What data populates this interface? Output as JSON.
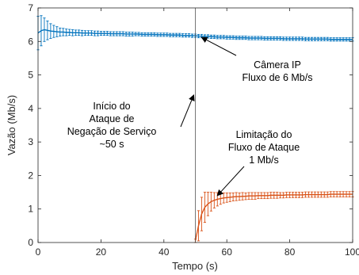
{
  "chart_data": {
    "type": "line",
    "title": "",
    "xlabel": "Tempo (s)",
    "ylabel": "Vazão (Mb/s)",
    "xlim": [
      0,
      100
    ],
    "ylim": [
      0,
      7
    ],
    "x_ticks": [
      "0",
      "20",
      "40",
      "60",
      "80",
      "100"
    ],
    "y_ticks": [
      "0",
      "1",
      "2",
      "3",
      "4",
      "5",
      "6",
      "7"
    ],
    "grid": false,
    "attack_start_x": 50,
    "series": [
      {
        "color": "#0072BD",
        "x": [
          0,
          1,
          2,
          3,
          4,
          5,
          6,
          7,
          8,
          9,
          10,
          11,
          12,
          13,
          14,
          15,
          16,
          17,
          18,
          19,
          20,
          21,
          22,
          23,
          24,
          25,
          26,
          27,
          28,
          29,
          30,
          31,
          32,
          33,
          34,
          35,
          36,
          37,
          38,
          39,
          40,
          41,
          42,
          43,
          44,
          45,
          46,
          47,
          48,
          49,
          50,
          51,
          52,
          53,
          54,
          55,
          56,
          57,
          58,
          59,
          60,
          61,
          62,
          63,
          64,
          65,
          66,
          67,
          68,
          69,
          70,
          71,
          72,
          73,
          74,
          75,
          76,
          77,
          78,
          79,
          80,
          81,
          82,
          83,
          84,
          85,
          86,
          87,
          88,
          89,
          90,
          91,
          92,
          93,
          94,
          95,
          96,
          97,
          98,
          99,
          100
        ],
        "y": [
          6.25,
          6.32,
          6.35,
          6.33,
          6.31,
          6.3,
          6.29,
          6.28,
          6.28,
          6.27,
          6.27,
          6.26,
          6.26,
          6.26,
          6.25,
          6.25,
          6.25,
          6.25,
          6.24,
          6.24,
          6.24,
          6.24,
          6.24,
          6.23,
          6.23,
          6.23,
          6.23,
          6.23,
          6.22,
          6.22,
          6.22,
          6.22,
          6.22,
          6.21,
          6.21,
          6.21,
          6.21,
          6.21,
          6.2,
          6.2,
          6.2,
          6.2,
          6.19,
          6.19,
          6.19,
          6.19,
          6.18,
          6.18,
          6.18,
          6.17,
          6.17,
          6.16,
          6.16,
          6.15,
          6.15,
          6.14,
          6.14,
          6.13,
          6.13,
          6.13,
          6.12,
          6.12,
          6.12,
          6.11,
          6.11,
          6.11,
          6.11,
          6.1,
          6.1,
          6.1,
          6.1,
          6.1,
          6.09,
          6.09,
          6.09,
          6.09,
          6.09,
          6.09,
          6.08,
          6.08,
          6.08,
          6.08,
          6.08,
          6.08,
          6.08,
          6.07,
          6.07,
          6.07,
          6.07,
          6.07,
          6.07,
          6.07,
          6.07,
          6.06,
          6.06,
          6.06,
          6.06,
          6.06,
          6.06,
          6.06,
          6.06
        ],
        "err": [
          0.5,
          0.45,
          0.35,
          0.28,
          0.22,
          0.18,
          0.15,
          0.12,
          0.11,
          0.1,
          0.09,
          0.09,
          0.08,
          0.08,
          0.08,
          0.07,
          0.07,
          0.07,
          0.07,
          0.07,
          0.06,
          0.06,
          0.06,
          0.06,
          0.06,
          0.06,
          0.06,
          0.06,
          0.06,
          0.06,
          0.06,
          0.05,
          0.05,
          0.05,
          0.05,
          0.05,
          0.05,
          0.05,
          0.05,
          0.05,
          0.05,
          0.05,
          0.05,
          0.05,
          0.05,
          0.05,
          0.05,
          0.05,
          0.05,
          0.05,
          0.05,
          0.05,
          0.05,
          0.05,
          0.05,
          0.05,
          0.05,
          0.05,
          0.05,
          0.05,
          0.05,
          0.05,
          0.05,
          0.05,
          0.05,
          0.05,
          0.05,
          0.05,
          0.05,
          0.05,
          0.05,
          0.05,
          0.05,
          0.05,
          0.05,
          0.05,
          0.05,
          0.05,
          0.05,
          0.05,
          0.05,
          0.05,
          0.05,
          0.05,
          0.05,
          0.05,
          0.05,
          0.05,
          0.05,
          0.05,
          0.05,
          0.05,
          0.05,
          0.05,
          0.05,
          0.05,
          0.05,
          0.05,
          0.05,
          0.05,
          0.05
        ]
      },
      {
        "color": "#D95319",
        "x": [
          50,
          51,
          52,
          53,
          54,
          55,
          56,
          57,
          58,
          59,
          60,
          61,
          62,
          63,
          64,
          65,
          66,
          67,
          68,
          69,
          70,
          71,
          72,
          73,
          74,
          75,
          76,
          77,
          78,
          79,
          80,
          81,
          82,
          83,
          84,
          85,
          86,
          87,
          88,
          89,
          90,
          91,
          92,
          93,
          94,
          95,
          96,
          97,
          98,
          99,
          100
        ],
        "y": [
          0.05,
          0.5,
          0.85,
          1.05,
          1.15,
          1.22,
          1.26,
          1.29,
          1.31,
          1.33,
          1.34,
          1.35,
          1.36,
          1.37,
          1.37,
          1.38,
          1.38,
          1.39,
          1.39,
          1.39,
          1.4,
          1.4,
          1.4,
          1.4,
          1.41,
          1.41,
          1.41,
          1.41,
          1.41,
          1.42,
          1.42,
          1.42,
          1.42,
          1.42,
          1.42,
          1.43,
          1.43,
          1.43,
          1.43,
          1.43,
          1.43,
          1.43,
          1.43,
          1.44,
          1.44,
          1.44,
          1.44,
          1.44,
          1.44,
          1.44,
          1.44
        ],
        "err": [
          0.05,
          0.45,
          0.5,
          0.45,
          0.35,
          0.28,
          0.23,
          0.2,
          0.17,
          0.15,
          0.14,
          0.13,
          0.12,
          0.12,
          0.11,
          0.11,
          0.1,
          0.1,
          0.1,
          0.1,
          0.09,
          0.09,
          0.09,
          0.09,
          0.09,
          0.09,
          0.09,
          0.08,
          0.08,
          0.08,
          0.08,
          0.08,
          0.08,
          0.08,
          0.08,
          0.08,
          0.08,
          0.08,
          0.08,
          0.08,
          0.08,
          0.08,
          0.08,
          0.08,
          0.08,
          0.08,
          0.08,
          0.08,
          0.08,
          0.08,
          0.08
        ]
      }
    ],
    "annotations": [
      {
        "lines": [
          "Câmera IP",
          "Fluxo de 6 Mb/s"
        ],
        "arrow_to": [
          52,
          6.12
        ]
      },
      {
        "lines": [
          "Início do",
          "Ataque de",
          "Negação de Serviço",
          "~50 s"
        ],
        "arrow_to": [
          49.5,
          4.4
        ]
      },
      {
        "lines": [
          "Limitação do",
          "Fluxo de Ataque",
          "1 Mb/s"
        ],
        "arrow_to": [
          57,
          1.4
        ]
      }
    ]
  }
}
